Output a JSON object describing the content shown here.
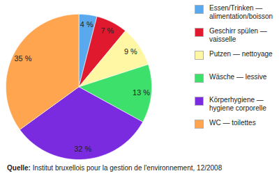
{
  "chart_data": {
    "type": "pie",
    "categories": [
      "Essen/Trinken — alimentation/boisson",
      "Geschirr spülen — vaisselle",
      "Putzen — nettoyage",
      "Wäsche — lessive",
      "Körperhygiene — hygiene corporelle",
      "WC — toilettes"
    ],
    "values": [
      4,
      7,
      9,
      13,
      32,
      35
    ],
    "value_labels": [
      "4 %",
      "7 %",
      "9 %",
      "13 %",
      "32 %",
      "35 %"
    ],
    "colors": [
      "#5aa9ef",
      "#e0192e",
      "#fff7a3",
      "#3ee06c",
      "#7a2be0",
      "#ffa54f"
    ],
    "data_labels": true,
    "legend": "right",
    "caption_label": "Quelle:",
    "caption": "Institut bruxellois pour la gestion de l'environnement, 12/2008"
  }
}
